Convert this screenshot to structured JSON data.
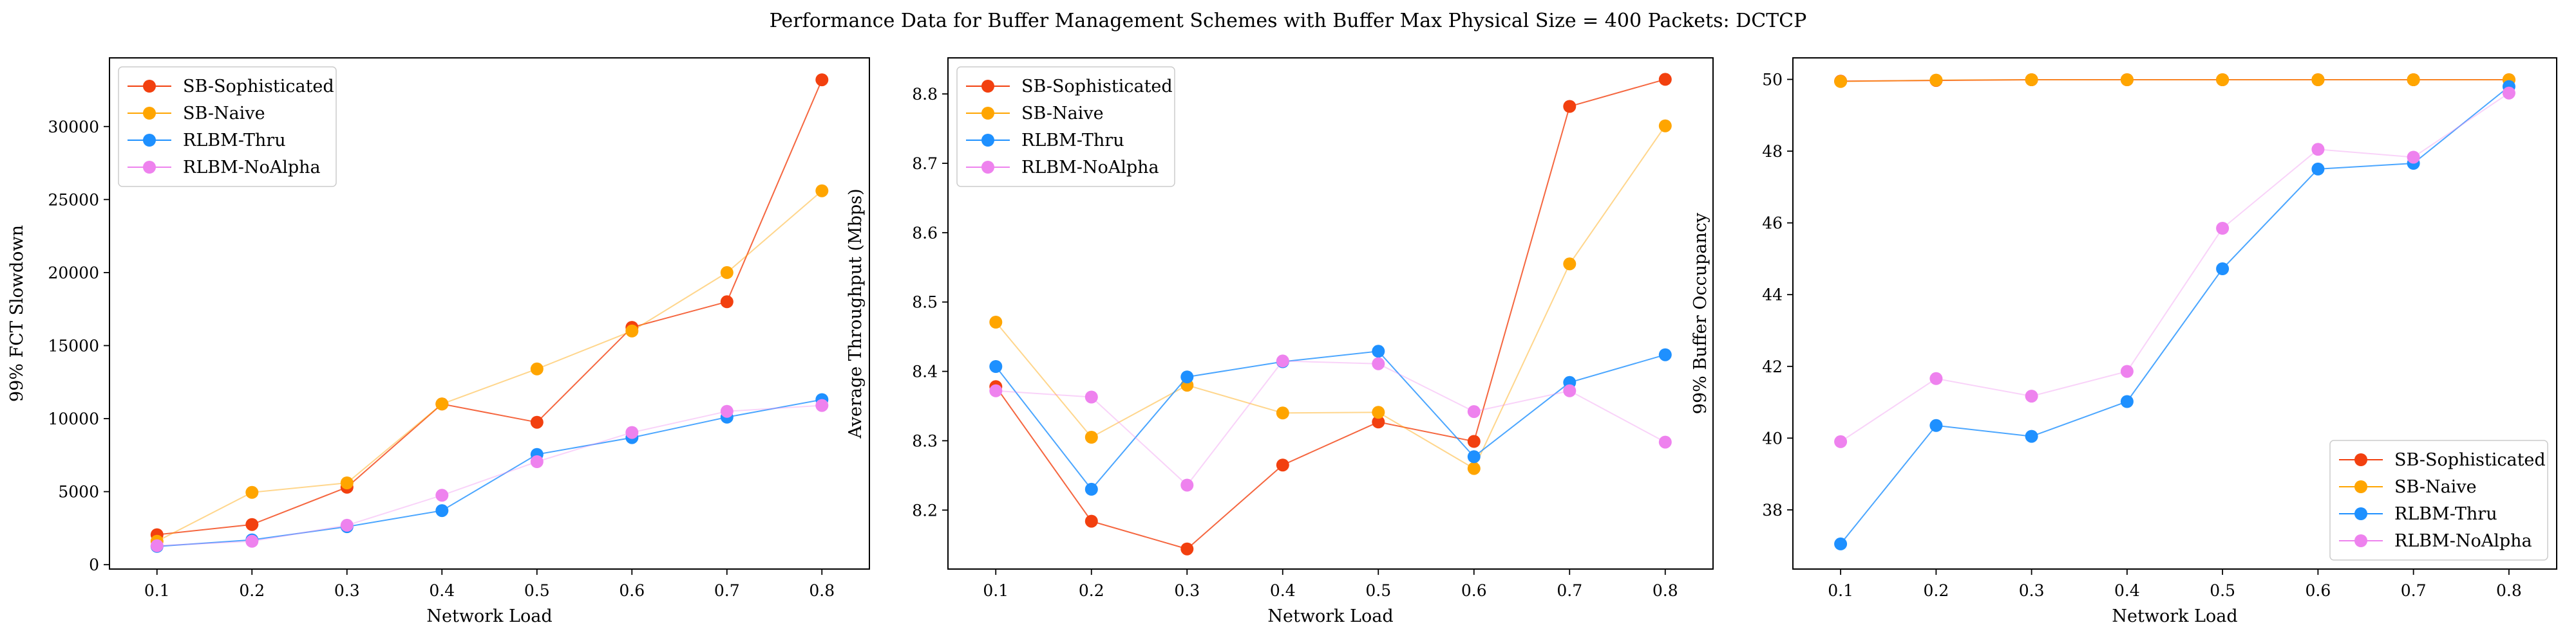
{
  "figure_title": "Performance Data for Buffer Management Schemes with Buffer Max Physical Size = 400 Packets: DCTCP",
  "series_colors": {
    "SB-Sophisticated": "#f2400f",
    "SB-Naive": "#ffa500",
    "RLBM-Thru": "#1e90ff",
    "RLBM-NoAlpha": "#ee82ee"
  },
  "chart_data": [
    {
      "type": "line",
      "xlabel": "Network Load",
      "ylabel": "99% FCT Slowdown",
      "x": [
        0.1,
        0.2,
        0.3,
        0.4,
        0.5,
        0.6,
        0.7,
        0.8
      ],
      "xlim": [
        0.05,
        0.85
      ],
      "ylim": [
        -300,
        34700
      ],
      "xticks": [
        "0.1",
        "0.2",
        "0.3",
        "0.4",
        "0.5",
        "0.6",
        "0.7",
        "0.8"
      ],
      "yticks": [
        "0",
        "5000",
        "10000",
        "15000",
        "20000",
        "25000",
        "30000"
      ],
      "legend": "upper-left",
      "grid": false,
      "series": [
        {
          "name": "SB-Sophisticated",
          "values": [
            2050,
            2750,
            5300,
            11000,
            9750,
            16250,
            18000,
            33200
          ]
        },
        {
          "name": "SB-Naive",
          "values": [
            1600,
            4950,
            5600,
            11000,
            13400,
            16000,
            20000,
            25600
          ]
        },
        {
          "name": "RLBM-Thru",
          "values": [
            1250,
            1700,
            2600,
            3700,
            7550,
            8700,
            10100,
            11300
          ]
        },
        {
          "name": "RLBM-NoAlpha",
          "values": [
            1300,
            1600,
            2700,
            4750,
            7050,
            9050,
            10500,
            10900
          ]
        }
      ]
    },
    {
      "type": "line",
      "xlabel": "Network Load",
      "ylabel": "Average Throughput (Mbps)",
      "x": [
        0.1,
        0.2,
        0.3,
        0.4,
        0.5,
        0.6,
        0.7,
        0.8
      ],
      "xlim": [
        0.05,
        0.85
      ],
      "ylim": [
        8.115,
        8.852
      ],
      "xticks": [
        "0.1",
        "0.2",
        "0.3",
        "0.4",
        "0.5",
        "0.6",
        "0.7",
        "0.8"
      ],
      "yticks": [
        "8.2",
        "8.3",
        "8.4",
        "8.5",
        "8.6",
        "8.7",
        "8.8"
      ],
      "legend": "upper-left",
      "grid": false,
      "series": [
        {
          "name": "SB-Sophisticated",
          "values": [
            8.378,
            8.184,
            8.144,
            8.265,
            8.327,
            8.299,
            8.782,
            8.821
          ]
        },
        {
          "name": "SB-Naive",
          "values": [
            8.471,
            8.305,
            8.38,
            8.34,
            8.341,
            8.26,
            8.555,
            8.754
          ]
        },
        {
          "name": "RLBM-Thru",
          "values": [
            8.407,
            8.23,
            8.392,
            8.414,
            8.429,
            8.277,
            8.384,
            8.424
          ]
        },
        {
          "name": "RLBM-NoAlpha",
          "values": [
            8.372,
            8.363,
            8.236,
            8.415,
            8.411,
            8.342,
            8.372,
            8.298
          ]
        }
      ]
    },
    {
      "type": "line",
      "xlabel": "Network Load",
      "ylabel": "99% Buffer Occupancy",
      "x": [
        0.1,
        0.2,
        0.3,
        0.4,
        0.5,
        0.6,
        0.7,
        0.8
      ],
      "xlim": [
        0.05,
        0.85
      ],
      "ylim": [
        36.35,
        50.6
      ],
      "xticks": [
        "0.1",
        "0.2",
        "0.3",
        "0.4",
        "0.5",
        "0.6",
        "0.7",
        "0.8"
      ],
      "yticks": [
        "38",
        "40",
        "42",
        "44",
        "46",
        "48",
        "50"
      ],
      "legend": "lower-right",
      "grid": false,
      "series": [
        {
          "name": "SB-Sophisticated",
          "values": [
            49.95,
            49.97,
            49.99,
            49.99,
            49.99,
            49.99,
            49.99,
            49.99
          ]
        },
        {
          "name": "SB-Naive",
          "values": [
            49.94,
            49.98,
            49.99,
            49.99,
            49.99,
            49.99,
            49.99,
            49.99
          ]
        },
        {
          "name": "RLBM-Thru",
          "values": [
            37.05,
            40.35,
            40.05,
            41.02,
            44.72,
            47.5,
            47.66,
            49.8
          ]
        },
        {
          "name": "RLBM-NoAlpha",
          "values": [
            39.9,
            41.66,
            41.17,
            41.86,
            45.85,
            48.05,
            47.83,
            49.62
          ]
        }
      ]
    }
  ]
}
